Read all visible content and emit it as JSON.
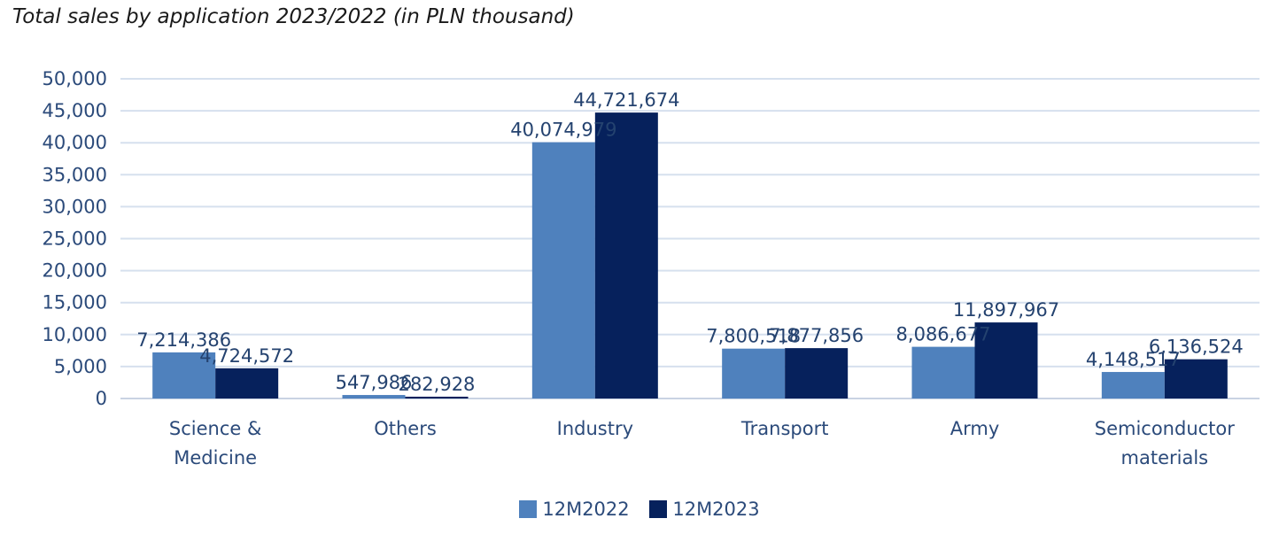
{
  "chart_data": {
    "type": "bar",
    "title": "Total sales by application 2023/2022 (in PLN thousand)",
    "categories": [
      [
        "Science &",
        "Medicine"
      ],
      [
        "Others"
      ],
      [
        "Industry"
      ],
      [
        "Transport"
      ],
      [
        "Army"
      ],
      [
        "Semiconductor",
        "materials"
      ]
    ],
    "series": [
      {
        "name": "12M2022",
        "color": "#4f81bd",
        "values": [
          7214.386,
          547.986,
          40074.979,
          7800.518,
          8086.677,
          4148.517
        ],
        "labels": [
          "7,214,386",
          "547,986",
          "40,074,979",
          "7,800,518",
          "8,086,677",
          "4,148,517"
        ]
      },
      {
        "name": "12M2023",
        "color": "#06215c",
        "values": [
          4724.572,
          282.928,
          44721.674,
          7877.856,
          11897.967,
          6136.524
        ],
        "labels": [
          "4,724,572",
          "282,928",
          "44,721,674",
          "7,877,856",
          "11,897,967",
          "6,136,524"
        ]
      }
    ],
    "yticks": [
      "50,000",
      "45,000",
      "40,000",
      "35,000",
      "30,000",
      "25,000",
      "20,000",
      "15,000",
      "10,000",
      "5,000",
      "0"
    ],
    "ylim": [
      0,
      50000
    ],
    "grid": true,
    "legend_position": "bottom"
  }
}
